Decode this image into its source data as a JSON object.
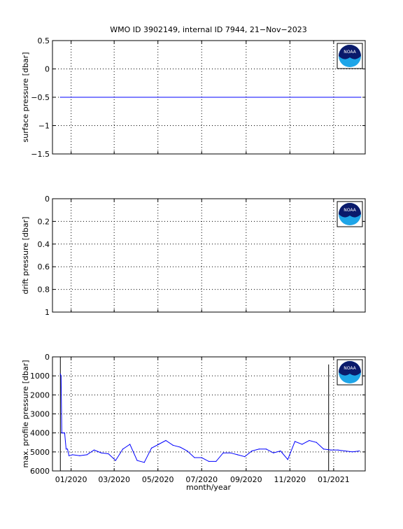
{
  "title": "WMO ID 3902149, internal ID 7944, 21−Nov−2023",
  "colors": {
    "series": "#0000ff",
    "axes": "#000000",
    "noaa_dark": "#0a1a6b",
    "noaa_light": "#1ea5e8"
  },
  "logo_text": "NOAA",
  "chart_data": [
    {
      "type": "line",
      "ylabel": "surface pressure [dbar]",
      "ylim": [
        -1.5,
        0.5
      ],
      "yticks": [
        0.5,
        0,
        -0.5,
        -1,
        -1.5
      ],
      "ytick_labels": [
        "0.5",
        "0",
        "−0.5",
        "−1",
        "−1.5"
      ],
      "y_reversed": false,
      "grid": true,
      "series": [
        {
          "x": [
            "2019-12-17",
            "2021-02-08"
          ],
          "y": [
            -0.5,
            -0.5
          ]
        }
      ]
    },
    {
      "type": "line",
      "ylabel": "drift pressure [dbar]",
      "ylim": [
        0,
        1
      ],
      "yticks": [
        0,
        0.2,
        0.4,
        0.6,
        0.8,
        1
      ],
      "ytick_labels": [
        "0",
        "0.2",
        "0.4",
        "0.6",
        "0.8",
        "1"
      ],
      "y_reversed": true,
      "grid": true,
      "series": []
    },
    {
      "type": "line",
      "ylabel": "max. profile pressure [dbar]",
      "xlabel": "month/year",
      "ylim": [
        0,
        6000
      ],
      "yticks": [
        0,
        1000,
        2000,
        3000,
        4000,
        5000,
        6000
      ],
      "ytick_labels": [
        "0",
        "1000",
        "2000",
        "3000",
        "4000",
        "5000",
        "6000"
      ],
      "y_reversed": true,
      "grid": true,
      "series": [
        {
          "x": [
            "2019-12-17",
            "2019-12-18",
            "2019-12-19",
            "2019-12-20",
            "2019-12-21",
            "2019-12-23",
            "2019-12-25",
            "2019-12-27",
            "2019-12-29",
            "2020-01-03",
            "2020-01-13",
            "2020-01-23",
            "2020-02-02",
            "2020-02-12",
            "2020-02-22",
            "2020-03-03",
            "2020-03-13",
            "2020-03-23",
            "2020-04-02",
            "2020-04-12",
            "2020-04-22",
            "2020-05-02",
            "2020-05-12",
            "2020-05-22",
            "2020-06-01",
            "2020-06-11",
            "2020-06-21",
            "2020-07-01",
            "2020-07-11",
            "2020-07-21",
            "2020-07-31",
            "2020-08-10",
            "2020-08-20",
            "2020-08-30",
            "2020-09-09",
            "2020-09-19",
            "2020-09-29",
            "2020-10-09",
            "2020-10-19",
            "2020-10-29",
            "2020-11-08",
            "2020-11-18",
            "2020-11-28",
            "2020-12-08",
            "2020-12-18",
            "2020-12-28",
            "2021-01-07",
            "2021-01-17",
            "2021-01-27",
            "2021-02-06"
          ],
          "y": [
            900,
            1000,
            4000,
            4000,
            4000,
            4000,
            4850,
            4850,
            5200,
            5150,
            5200,
            5150,
            4900,
            5050,
            5100,
            5450,
            4850,
            4600,
            5450,
            5550,
            4800,
            4600,
            4400,
            4650,
            4750,
            4950,
            5300,
            5300,
            5500,
            5500,
            5050,
            5050,
            5150,
            5250,
            4950,
            4850,
            4850,
            5050,
            4950,
            5400,
            4450,
            4600,
            4400,
            4500,
            4850,
            4900,
            4900,
            4950,
            5000,
            4950
          ]
        }
      ],
      "markers": [
        {
          "x": "2019-12-17",
          "y": [
            0,
            6000
          ]
        },
        {
          "x": "2020-12-25",
          "y": [
            400,
            6000
          ]
        }
      ]
    }
  ],
  "x_axis": {
    "range": [
      "2019-12-06",
      "2021-02-14"
    ],
    "ticks": [
      "2020-01-01",
      "2020-03-01",
      "2020-05-01",
      "2020-07-01",
      "2020-09-01",
      "2020-11-01",
      "2021-01-01"
    ],
    "tick_labels": [
      "01/2020",
      "03/2020",
      "05/2020",
      "07/2020",
      "09/2020",
      "11/2020",
      "01/2021"
    ]
  }
}
